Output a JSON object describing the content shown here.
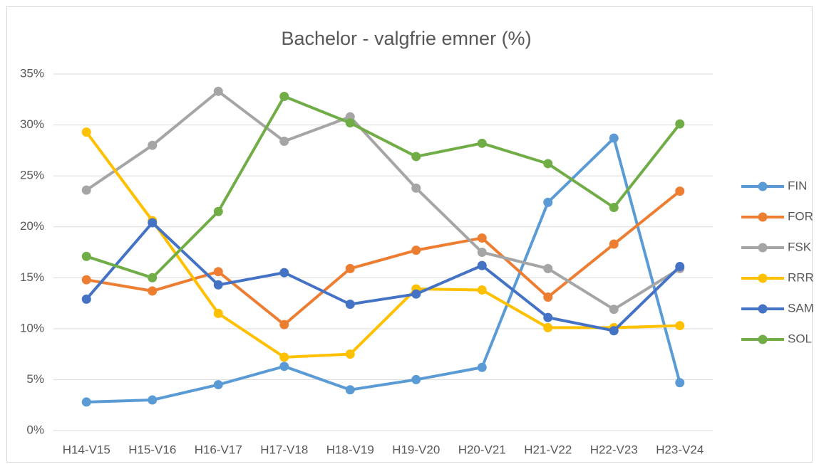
{
  "chart_data": {
    "type": "line",
    "title": "Bachelor - valgfrie emner (%)",
    "categories": [
      "H14-V15",
      "H15-V16",
      "H16-V17",
      "H17-V18",
      "H18-V19",
      "H19-V20",
      "H20-V21",
      "H21-V22",
      "H22-V23",
      "H23-V24"
    ],
    "series": [
      {
        "name": "FIN",
        "color": "#5b9bd5",
        "values": [
          2.8,
          3.0,
          4.5,
          6.3,
          4.0,
          5.0,
          6.2,
          22.4,
          28.7,
          4.7
        ]
      },
      {
        "name": "FOR",
        "color": "#ed7d31",
        "values": [
          14.8,
          13.7,
          15.6,
          10.4,
          15.9,
          17.7,
          18.9,
          13.1,
          18.3,
          23.5
        ]
      },
      {
        "name": "FSK",
        "color": "#a5a5a5",
        "values": [
          23.6,
          28.0,
          33.3,
          28.4,
          30.8,
          23.8,
          17.5,
          15.9,
          11.9,
          15.9
        ]
      },
      {
        "name": "RRR",
        "color": "#ffc000",
        "values": [
          29.3,
          20.6,
          11.5,
          7.2,
          7.5,
          13.9,
          13.8,
          10.1,
          10.1,
          10.3
        ]
      },
      {
        "name": "SAM",
        "color": "#4472c4",
        "values": [
          12.9,
          20.4,
          14.3,
          15.5,
          12.4,
          13.4,
          16.2,
          11.1,
          9.8,
          16.1
        ]
      },
      {
        "name": "SOL",
        "color": "#70ad47",
        "values": [
          17.1,
          15.0,
          21.5,
          32.8,
          30.2,
          26.9,
          28.2,
          26.2,
          21.9,
          30.1
        ]
      }
    ],
    "ylim": [
      0,
      35
    ],
    "yticks": [
      {
        "value": 0,
        "label": "0%"
      },
      {
        "value": 5,
        "label": "5%"
      },
      {
        "value": 10,
        "label": "10%"
      },
      {
        "value": 15,
        "label": "15%"
      },
      {
        "value": 20,
        "label": "20%"
      },
      {
        "value": 25,
        "label": "25%"
      },
      {
        "value": 30,
        "label": "30%"
      },
      {
        "value": 35,
        "label": "35%"
      }
    ],
    "grid": true,
    "legend": "right"
  }
}
